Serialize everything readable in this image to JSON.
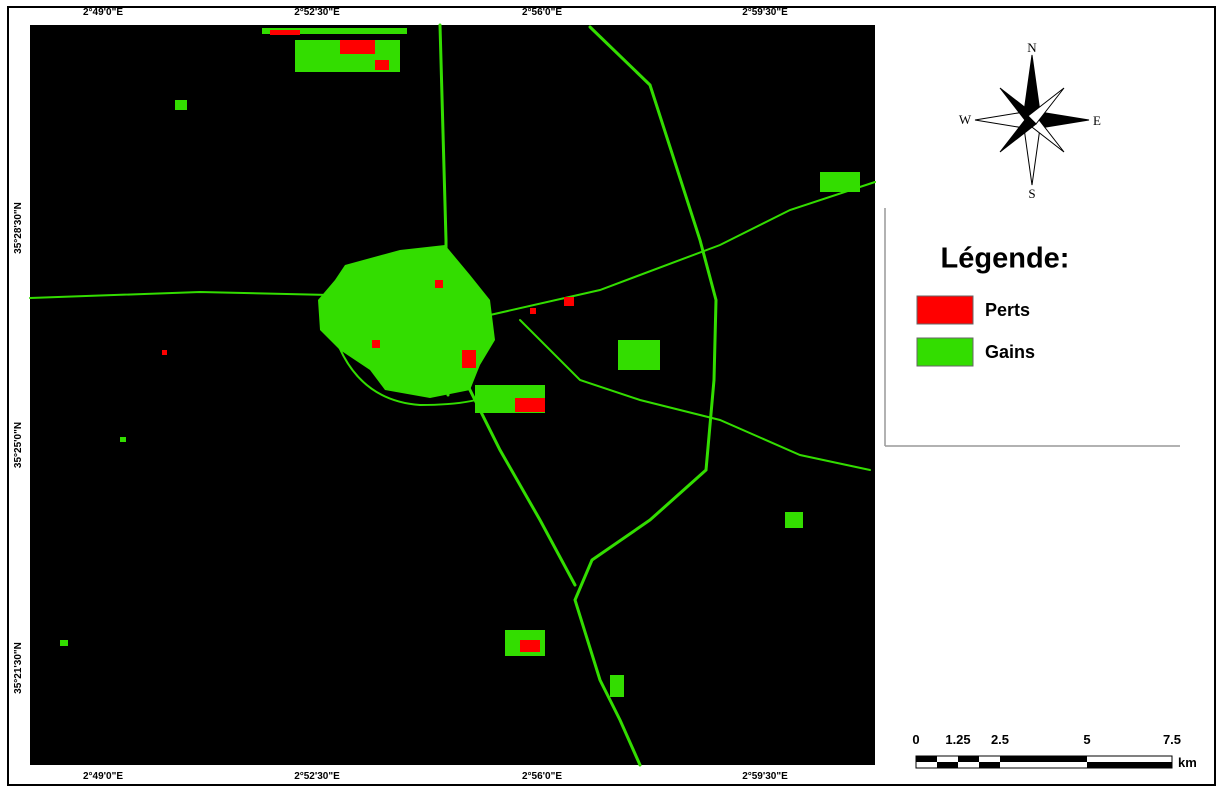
{
  "map": {
    "top_labels": [
      "2°49'0\"E",
      "2°52'30\"E",
      "2°56'0\"E",
      "2°59'30\"E"
    ],
    "bottom_labels": [
      "2°49'0\"E",
      "2°52'30\"E",
      "2°56'0\"E",
      "2°59'30\"E"
    ],
    "left_labels": [
      "35°28'30\"N",
      "35°25'0\"N",
      "35°21'30\"N"
    ],
    "compass": {
      "north": "N",
      "south": "S",
      "east": "E",
      "west": "W"
    },
    "legend": {
      "title": "Légende:",
      "items": [
        {
          "label": "Perts",
          "color": "#ff0000"
        },
        {
          "label": "Gains",
          "color": "#33dd00"
        }
      ]
    },
    "scale_bar": {
      "labels": [
        "0",
        "1.25",
        "2.5",
        "5",
        "7.5"
      ],
      "unit": "km"
    }
  }
}
